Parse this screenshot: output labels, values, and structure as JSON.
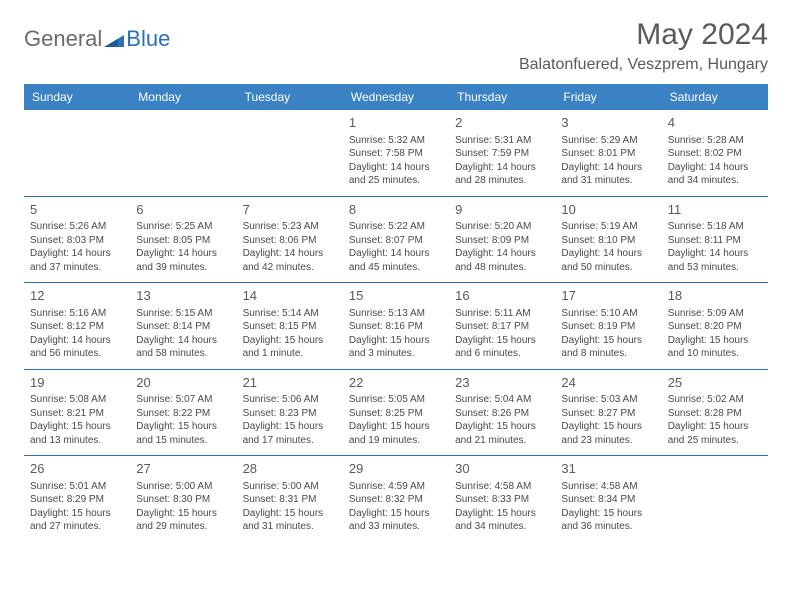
{
  "logo": {
    "gray_text": "General",
    "blue_text": "Blue",
    "gray_color": "#6b6b6b",
    "blue_color": "#2a71b8"
  },
  "title": "May 2024",
  "location": "Balatonfuered, Veszprem, Hungary",
  "header_bg": "#3b82c4",
  "header_fg": "#ffffff",
  "border_color": "#2a71b8",
  "text_color": "#4a4a4a",
  "daynum_color": "#5a5a5a",
  "days_of_week": [
    "Sunday",
    "Monday",
    "Tuesday",
    "Wednesday",
    "Thursday",
    "Friday",
    "Saturday"
  ],
  "weeks": [
    [
      null,
      null,
      null,
      {
        "n": "1",
        "sr": "5:32 AM",
        "ss": "7:58 PM",
        "dl": "14 hours and 25 minutes."
      },
      {
        "n": "2",
        "sr": "5:31 AM",
        "ss": "7:59 PM",
        "dl": "14 hours and 28 minutes."
      },
      {
        "n": "3",
        "sr": "5:29 AM",
        "ss": "8:01 PM",
        "dl": "14 hours and 31 minutes."
      },
      {
        "n": "4",
        "sr": "5:28 AM",
        "ss": "8:02 PM",
        "dl": "14 hours and 34 minutes."
      }
    ],
    [
      {
        "n": "5",
        "sr": "5:26 AM",
        "ss": "8:03 PM",
        "dl": "14 hours and 37 minutes."
      },
      {
        "n": "6",
        "sr": "5:25 AM",
        "ss": "8:05 PM",
        "dl": "14 hours and 39 minutes."
      },
      {
        "n": "7",
        "sr": "5:23 AM",
        "ss": "8:06 PM",
        "dl": "14 hours and 42 minutes."
      },
      {
        "n": "8",
        "sr": "5:22 AM",
        "ss": "8:07 PM",
        "dl": "14 hours and 45 minutes."
      },
      {
        "n": "9",
        "sr": "5:20 AM",
        "ss": "8:09 PM",
        "dl": "14 hours and 48 minutes."
      },
      {
        "n": "10",
        "sr": "5:19 AM",
        "ss": "8:10 PM",
        "dl": "14 hours and 50 minutes."
      },
      {
        "n": "11",
        "sr": "5:18 AM",
        "ss": "8:11 PM",
        "dl": "14 hours and 53 minutes."
      }
    ],
    [
      {
        "n": "12",
        "sr": "5:16 AM",
        "ss": "8:12 PM",
        "dl": "14 hours and 56 minutes."
      },
      {
        "n": "13",
        "sr": "5:15 AM",
        "ss": "8:14 PM",
        "dl": "14 hours and 58 minutes."
      },
      {
        "n": "14",
        "sr": "5:14 AM",
        "ss": "8:15 PM",
        "dl": "15 hours and 1 minute."
      },
      {
        "n": "15",
        "sr": "5:13 AM",
        "ss": "8:16 PM",
        "dl": "15 hours and 3 minutes."
      },
      {
        "n": "16",
        "sr": "5:11 AM",
        "ss": "8:17 PM",
        "dl": "15 hours and 6 minutes."
      },
      {
        "n": "17",
        "sr": "5:10 AM",
        "ss": "8:19 PM",
        "dl": "15 hours and 8 minutes."
      },
      {
        "n": "18",
        "sr": "5:09 AM",
        "ss": "8:20 PM",
        "dl": "15 hours and 10 minutes."
      }
    ],
    [
      {
        "n": "19",
        "sr": "5:08 AM",
        "ss": "8:21 PM",
        "dl": "15 hours and 13 minutes."
      },
      {
        "n": "20",
        "sr": "5:07 AM",
        "ss": "8:22 PM",
        "dl": "15 hours and 15 minutes."
      },
      {
        "n": "21",
        "sr": "5:06 AM",
        "ss": "8:23 PM",
        "dl": "15 hours and 17 minutes."
      },
      {
        "n": "22",
        "sr": "5:05 AM",
        "ss": "8:25 PM",
        "dl": "15 hours and 19 minutes."
      },
      {
        "n": "23",
        "sr": "5:04 AM",
        "ss": "8:26 PM",
        "dl": "15 hours and 21 minutes."
      },
      {
        "n": "24",
        "sr": "5:03 AM",
        "ss": "8:27 PM",
        "dl": "15 hours and 23 minutes."
      },
      {
        "n": "25",
        "sr": "5:02 AM",
        "ss": "8:28 PM",
        "dl": "15 hours and 25 minutes."
      }
    ],
    [
      {
        "n": "26",
        "sr": "5:01 AM",
        "ss": "8:29 PM",
        "dl": "15 hours and 27 minutes."
      },
      {
        "n": "27",
        "sr": "5:00 AM",
        "ss": "8:30 PM",
        "dl": "15 hours and 29 minutes."
      },
      {
        "n": "28",
        "sr": "5:00 AM",
        "ss": "8:31 PM",
        "dl": "15 hours and 31 minutes."
      },
      {
        "n": "29",
        "sr": "4:59 AM",
        "ss": "8:32 PM",
        "dl": "15 hours and 33 minutes."
      },
      {
        "n": "30",
        "sr": "4:58 AM",
        "ss": "8:33 PM",
        "dl": "15 hours and 34 minutes."
      },
      {
        "n": "31",
        "sr": "4:58 AM",
        "ss": "8:34 PM",
        "dl": "15 hours and 36 minutes."
      },
      null
    ]
  ],
  "labels": {
    "sunrise": "Sunrise: ",
    "sunset": "Sunset: ",
    "daylight": "Daylight: "
  }
}
